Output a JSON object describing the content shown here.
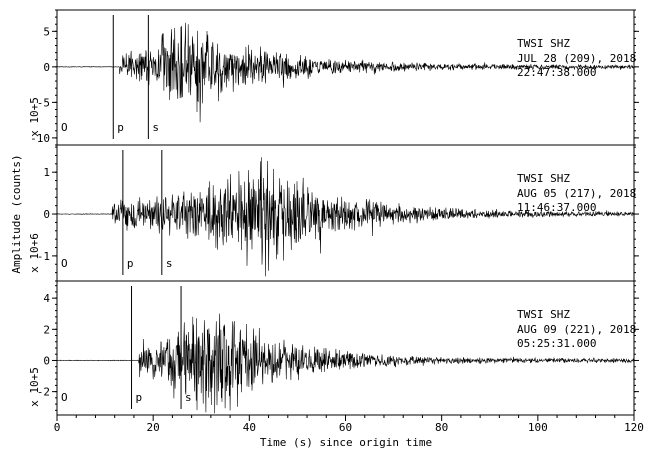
{
  "chart_data": {
    "type": "line",
    "xlabel": "Time (s) since origin time",
    "ylabel": "Amplitude (counts)",
    "xlim": [
      0,
      120
    ],
    "xticks": [
      0,
      20,
      40,
      60,
      80,
      100,
      120
    ],
    "xtick_labels": [
      "0",
      "20",
      "40",
      "60",
      "80",
      "100",
      "120"
    ],
    "panels": [
      {
        "station": "TWSI  SHZ",
        "date": "JUL 28 (209), 2018",
        "time": "22:47:38.000",
        "scale_label": "x 10+5",
        "ylim": [
          -11,
          8
        ],
        "yticks": [
          -10,
          -5,
          0,
          5
        ],
        "ytick_labels": [
          "-10",
          "-5",
          "0",
          "5"
        ],
        "picks": [
          {
            "label": "O",
            "t": 0
          },
          {
            "label": "p",
            "t": 11.7
          },
          {
            "label": "s",
            "t": 19.0
          }
        ],
        "signal": {
          "onset": 13.0,
          "peak_t": 25.0,
          "peak_amp": 8.0,
          "decay": 0.062,
          "end": 120
        }
      },
      {
        "station": "TWSI  SHZ",
        "date": "AUG 05 (217), 2018",
        "time": "11:46:37.000",
        "scale_label": "x 10+6",
        "ylim": [
          -1.6,
          1.65
        ],
        "yticks": [
          -1,
          0,
          1
        ],
        "ytick_labels": [
          "-1",
          "0",
          "1"
        ],
        "picks": [
          {
            "label": "O",
            "t": 0
          },
          {
            "label": "p",
            "t": 13.7
          },
          {
            "label": "s",
            "t": 21.8
          }
        ],
        "signal": {
          "onset": 11.5,
          "peak_t": 43.0,
          "peak_amp": 1.6,
          "decay": 0.07,
          "end": 120
        }
      },
      {
        "station": "TWSI  SHZ",
        "date": "AUG 09 (221), 2018",
        "time": "05:25:31.000",
        "scale_label": "x 10+5",
        "ylim": [
          -3.5,
          5.1
        ],
        "yticks": [
          -2,
          0,
          2,
          4
        ],
        "ytick_labels": [
          "-2",
          "0",
          "2",
          "4"
        ],
        "picks": [
          {
            "label": "O",
            "t": 0
          },
          {
            "label": "p",
            "t": 15.5
          },
          {
            "label": "s",
            "t": 25.8
          }
        ],
        "signal": {
          "onset": 17.0,
          "peak_t": 31.0,
          "peak_amp": 4.9,
          "decay": 0.075,
          "end": 120
        }
      }
    ]
  }
}
